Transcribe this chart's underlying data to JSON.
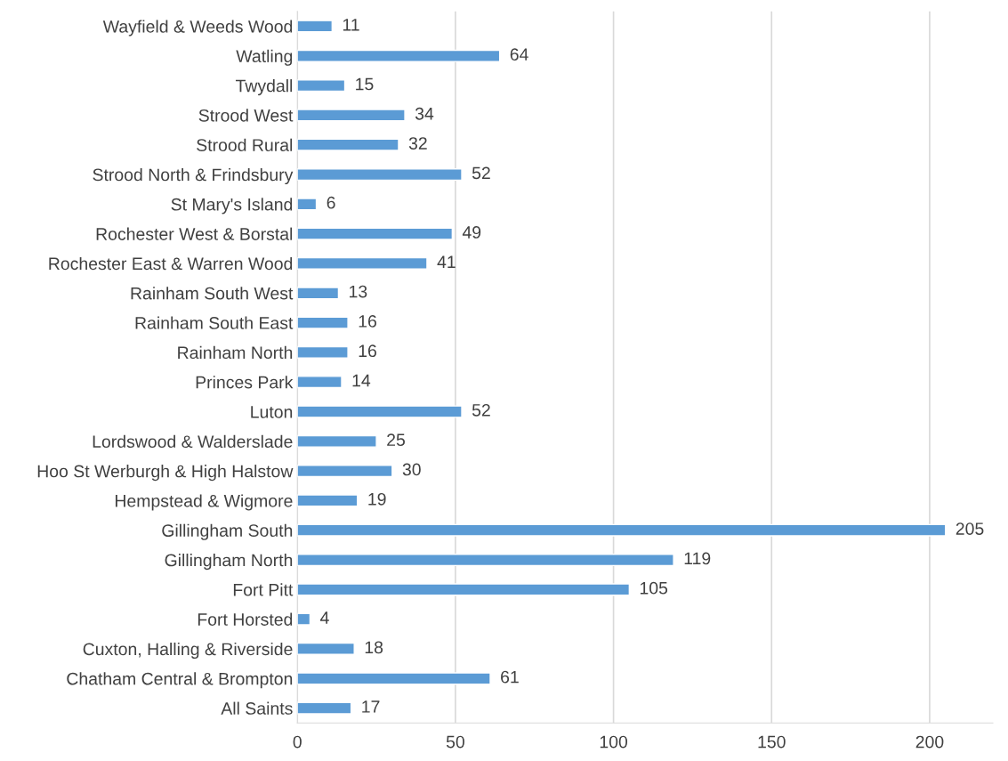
{
  "chart_data": {
    "type": "bar",
    "orientation": "horizontal",
    "categories": [
      "Wayfield & Weeds Wood",
      "Watling",
      "Twydall",
      "Strood West",
      "Strood Rural",
      "Strood North & Frindsbury",
      "St Mary's Island",
      "Rochester West & Borstal",
      "Rochester East & Warren Wood",
      "Rainham South West",
      "Rainham South East",
      "Rainham North",
      "Princes Park",
      "Luton",
      "Lordswood & Walderslade",
      "Hoo St Werburgh & High Halstow",
      "Hempstead & Wigmore",
      "Gillingham South",
      "Gillingham North",
      "Fort Pitt",
      "Fort Horsted",
      "Cuxton, Halling & Riverside",
      "Chatham Central & Brompton",
      "All Saints"
    ],
    "values": [
      11,
      64,
      15,
      34,
      32,
      52,
      6,
      49,
      41,
      13,
      16,
      16,
      14,
      52,
      25,
      30,
      19,
      205,
      119,
      105,
      4,
      18,
      61,
      17
    ],
    "color": "#5b9bd5",
    "xlim": [
      0,
      220
    ],
    "xticks": [
      0,
      50,
      100,
      150,
      200
    ],
    "grid": "x",
    "data_labels": true
  }
}
